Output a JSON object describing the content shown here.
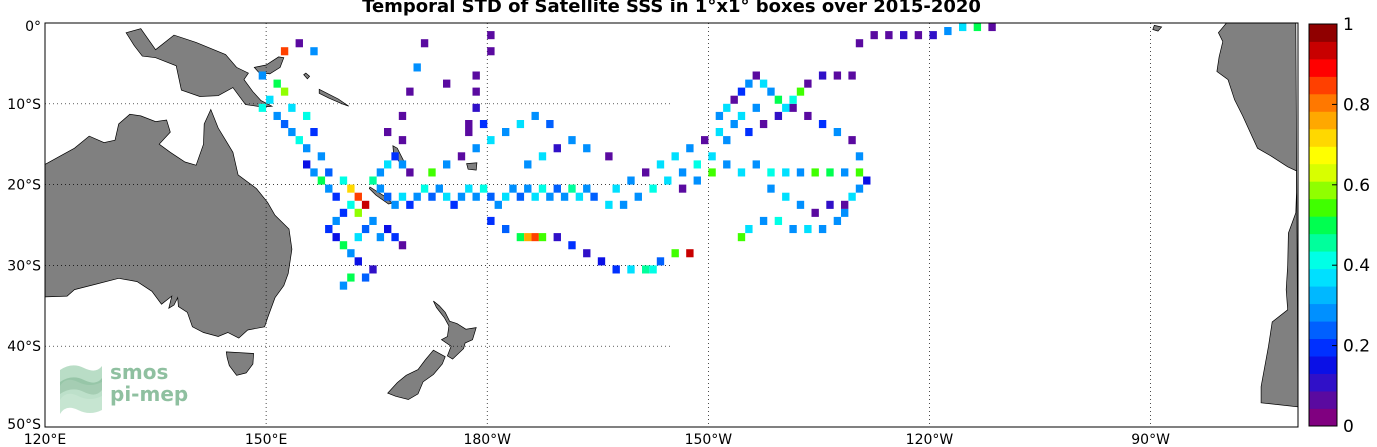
{
  "title": "Temporal STD of Satellite SSS in 1°x1° boxes over 2015-2020",
  "map": {
    "lon_range": [
      120,
      290
    ],
    "lat_range": [
      -50,
      0
    ],
    "x_ticks": [
      {
        "lon": 120,
        "label": "120°E"
      },
      {
        "lon": 150,
        "label": "150°E"
      },
      {
        "lon": 180,
        "label": "180°W"
      },
      {
        "lon": 210,
        "label": "150°W"
      },
      {
        "lon": 240,
        "label": "120°W"
      },
      {
        "lon": 270,
        "label": "90°W"
      }
    ],
    "y_ticks": [
      {
        "lat": 0,
        "label": "0°"
      },
      {
        "lat": -10,
        "label": "10°S"
      },
      {
        "lat": -20,
        "label": "20°S"
      },
      {
        "lat": -30,
        "label": "30°S"
      },
      {
        "lat": -40,
        "label": "40°S"
      },
      {
        "lat": -50,
        "label": "50°S"
      }
    ],
    "land_color": "#808080"
  },
  "colorbar": {
    "min": 0,
    "max": 1,
    "levels": 22,
    "labels": [
      "0",
      "0.2",
      "0.4",
      "0.6",
      "0.8",
      "1"
    ],
    "colors": [
      "#800080",
      "#5a0aa0",
      "#3010c8",
      "#0a10e6",
      "#0030ff",
      "#0060ff",
      "#0090ff",
      "#00b8ff",
      "#00e0ff",
      "#00ffe6",
      "#00ff9c",
      "#00ff50",
      "#40ff00",
      "#90ff00",
      "#d8ff00",
      "#ffff00",
      "#ffd800",
      "#ffa800",
      "#ff7800",
      "#ff4000",
      "#ff0000",
      "#c80000",
      "#900000"
    ]
  },
  "logo": {
    "line1": "smos",
    "line2": "pi-mep"
  },
  "chart_data": {
    "type": "heatmap",
    "title": "Temporal STD of Satellite SSS in 1°x1° boxes over 2015-2020",
    "value_range": [
      0,
      1
    ],
    "note_cells": "Each cell is [lon_deg_east, lat_deg, std_value]",
    "cells": [
      [
        152,
        -3,
        0.85
      ],
      [
        154,
        -2,
        0.05
      ],
      [
        156,
        -3,
        0.3
      ],
      [
        149,
        -6,
        0.3
      ],
      [
        151,
        -7,
        0.5
      ],
      [
        152,
        -8,
        0.6
      ],
      [
        150,
        -9,
        0.35
      ],
      [
        149,
        -10,
        0.4
      ],
      [
        151,
        -11,
        0.3
      ],
      [
        152,
        -12,
        0.25
      ],
      [
        153,
        -13,
        0.3
      ],
      [
        154,
        -14,
        0.4
      ],
      [
        155,
        -15,
        0.3
      ],
      [
        153,
        -10,
        0.35
      ],
      [
        155,
        -11,
        0.4
      ],
      [
        156,
        -13,
        0.2
      ],
      [
        157,
        -16,
        0.3
      ],
      [
        158,
        -18,
        0.25
      ],
      [
        155,
        -17,
        0.15
      ],
      [
        156,
        -18,
        0.3
      ],
      [
        157,
        -19,
        0.5
      ],
      [
        158,
        -20,
        0.3
      ],
      [
        159,
        -21,
        0.2
      ],
      [
        160,
        -19,
        0.4
      ],
      [
        161,
        -20,
        0.7
      ],
      [
        162,
        -21,
        0.85
      ],
      [
        163,
        -22,
        0.95
      ],
      [
        162,
        -23,
        0.6
      ],
      [
        161,
        -22,
        0.4
      ],
      [
        160,
        -23,
        0.2
      ],
      [
        159,
        -24,
        0.3
      ],
      [
        158,
        -25,
        0.2
      ],
      [
        159,
        -26,
        0.15
      ],
      [
        160,
        -27,
        0.5
      ],
      [
        161,
        -28,
        0.3
      ],
      [
        162,
        -29,
        0.15
      ],
      [
        161,
        -31,
        0.5
      ],
      [
        160,
        -32,
        0.3
      ],
      [
        163,
        -31,
        0.25
      ],
      [
        164,
        -30,
        0.1
      ],
      [
        162,
        -26,
        0.35
      ],
      [
        163,
        -25,
        0.25
      ],
      [
        164,
        -24,
        0.3
      ],
      [
        165,
        -26,
        0.3
      ],
      [
        166,
        -25,
        0.15
      ],
      [
        167,
        -26,
        0.2
      ],
      [
        168,
        -27,
        0.05
      ],
      [
        164,
        -19,
        0.45
      ],
      [
        165,
        -18,
        0.3
      ],
      [
        166,
        -17,
        0.35
      ],
      [
        167,
        -16,
        0.2
      ],
      [
        168,
        -17,
        0.3
      ],
      [
        169,
        -18,
        0.05
      ],
      [
        165,
        -20,
        0.3
      ],
      [
        166,
        -21,
        0.25
      ],
      [
        167,
        -22,
        0.3
      ],
      [
        168,
        -21,
        0.35
      ],
      [
        169,
        -22,
        0.2
      ],
      [
        170,
        -21,
        0.3
      ],
      [
        171,
        -20,
        0.4
      ],
      [
        172,
        -21,
        0.25
      ],
      [
        173,
        -20,
        0.3
      ],
      [
        174,
        -21,
        0.35
      ],
      [
        175,
        -22,
        0.2
      ],
      [
        176,
        -21,
        0.3
      ],
      [
        177,
        -20,
        0.35
      ],
      [
        178,
        -21,
        0.3
      ],
      [
        179,
        -20,
        0.4
      ],
      [
        180,
        -21,
        0.25
      ],
      [
        181,
        -22,
        0.3
      ],
      [
        182,
        -21,
        0.35
      ],
      [
        183,
        -20,
        0.3
      ],
      [
        184,
        -21,
        0.25
      ],
      [
        185,
        -20,
        0.3
      ],
      [
        186,
        -21,
        0.35
      ],
      [
        187,
        -20,
        0.4
      ],
      [
        188,
        -21,
        0.3
      ],
      [
        189,
        -20,
        0.25
      ],
      [
        190,
        -21,
        0.3
      ],
      [
        191,
        -20,
        0.45
      ],
      [
        192,
        -21,
        0.35
      ],
      [
        193,
        -20,
        0.3
      ],
      [
        194,
        -21,
        0.25
      ],
      [
        172,
        -18,
        0.55
      ],
      [
        174,
        -17,
        0.3
      ],
      [
        176,
        -16,
        0.05
      ],
      [
        178,
        -15,
        0.3
      ],
      [
        180,
        -14,
        0.35
      ],
      [
        182,
        -13,
        0.3
      ],
      [
        184,
        -12,
        0.35
      ],
      [
        186,
        -11,
        0.3
      ],
      [
        188,
        -12,
        0.25
      ],
      [
        177,
        -13,
        0.05
      ],
      [
        179,
        -12,
        0.2
      ],
      [
        168,
        -14,
        0.05
      ],
      [
        166,
        -13,
        0.05
      ],
      [
        180,
        -24,
        0.2
      ],
      [
        182,
        -25,
        0.25
      ],
      [
        184,
        -26,
        0.5
      ],
      [
        185,
        -26,
        0.75
      ],
      [
        186,
        -26,
        0.85
      ],
      [
        187,
        -26,
        0.55
      ],
      [
        189,
        -26,
        0.1
      ],
      [
        191,
        -27,
        0.2
      ],
      [
        193,
        -28,
        0.1
      ],
      [
        195,
        -29,
        0.15
      ],
      [
        197,
        -30,
        0.2
      ],
      [
        199,
        -30,
        0.35
      ],
      [
        201,
        -30,
        0.45
      ],
      [
        202,
        -30,
        0.4
      ],
      [
        203,
        -29,
        0.25
      ],
      [
        205,
        -28,
        0.55
      ],
      [
        207,
        -28,
        0.95
      ],
      [
        196,
        -22,
        0.35
      ],
      [
        198,
        -22,
        0.3
      ],
      [
        200,
        -21,
        0.3
      ],
      [
        202,
        -20,
        0.4
      ],
      [
        204,
        -19,
        0.35
      ],
      [
        206,
        -18,
        0.3
      ],
      [
        208,
        -17,
        0.4
      ],
      [
        210,
        -16,
        0.35
      ],
      [
        212,
        -17,
        0.3
      ],
      [
        214,
        -18,
        0.35
      ],
      [
        216,
        -17,
        0.3
      ],
      [
        218,
        -18,
        0.4
      ],
      [
        220,
        -18,
        0.35
      ],
      [
        222,
        -18,
        0.3
      ],
      [
        224,
        -18,
        0.55
      ],
      [
        226,
        -18,
        0.5
      ],
      [
        228,
        -18,
        0.3
      ],
      [
        230,
        -18,
        0.55
      ],
      [
        231,
        -19,
        0.15
      ],
      [
        230,
        -16,
        0.3
      ],
      [
        229,
        -14,
        0.05
      ],
      [
        227,
        -13,
        0.3
      ],
      [
        225,
        -12,
        0.2
      ],
      [
        223,
        -11,
        0.05
      ],
      [
        221,
        -10,
        0.05
      ],
      [
        219,
        -11,
        0.1
      ],
      [
        217,
        -12,
        0.05
      ],
      [
        215,
        -13,
        0.2
      ],
      [
        213,
        -12,
        0.3
      ],
      [
        211,
        -13,
        0.35
      ],
      [
        209,
        -14,
        0.05
      ],
      [
        207,
        -15,
        0.3
      ],
      [
        205,
        -16,
        0.35
      ],
      [
        203,
        -17,
        0.35
      ],
      [
        201,
        -18,
        0.05
      ],
      [
        199,
        -19,
        0.3
      ],
      [
        197,
        -20,
        0.35
      ],
      [
        211,
        -11,
        0.3
      ],
      [
        212,
        -10,
        0.35
      ],
      [
        213,
        -9,
        0.05
      ],
      [
        214,
        -8,
        0.2
      ],
      [
        215,
        -7,
        0.3
      ],
      [
        216,
        -6,
        0.05
      ],
      [
        217,
        -7,
        0.35
      ],
      [
        218,
        -8,
        0.3
      ],
      [
        219,
        -9,
        0.5
      ],
      [
        220,
        -10,
        0.35
      ],
      [
        221,
        -9,
        0.4
      ],
      [
        222,
        -8,
        0.55
      ],
      [
        223,
        -7,
        0.05
      ],
      [
        225,
        -6,
        0.1
      ],
      [
        227,
        -6,
        0.05
      ],
      [
        229,
        -6,
        0.05
      ],
      [
        218,
        -20,
        0.3
      ],
      [
        220,
        -21,
        0.35
      ],
      [
        222,
        -22,
        0.3
      ],
      [
        224,
        -23,
        0.05
      ],
      [
        226,
        -22,
        0.1
      ],
      [
        228,
        -23,
        0.3
      ],
      [
        217,
        -24,
        0.3
      ],
      [
        215,
        -25,
        0.35
      ],
      [
        214,
        -26,
        0.55
      ],
      [
        219,
        -24,
        0.4
      ],
      [
        221,
        -25,
        0.3
      ],
      [
        223,
        -25,
        0.35
      ],
      [
        225,
        -25,
        0.3
      ],
      [
        230,
        -20,
        0.3
      ],
      [
        229,
        -21,
        0.35
      ],
      [
        228,
        -22,
        0.05
      ],
      [
        227,
        -24,
        0.3
      ],
      [
        185,
        -17,
        0.3
      ],
      [
        187,
        -16,
        0.35
      ],
      [
        189,
        -15,
        0.1
      ],
      [
        191,
        -14,
        0.3
      ],
      [
        193,
        -15,
        0.3
      ],
      [
        196,
        -16,
        0.05
      ],
      [
        178,
        -6,
        0.05
      ],
      [
        178,
        -8,
        0.05
      ],
      [
        178,
        -10,
        0.1
      ],
      [
        177,
        -12,
        0.05
      ],
      [
        171,
        -2,
        0.05
      ],
      [
        170,
        -5,
        0.3
      ],
      [
        169,
        -8,
        0.05
      ],
      [
        168,
        -11,
        0.05
      ],
      [
        174,
        -7,
        0.05
      ],
      [
        180,
        -3,
        0.05
      ],
      [
        180,
        -1,
        0.05
      ],
      [
        230,
        -2,
        0.05
      ],
      [
        232,
        -1,
        0.05
      ],
      [
        234,
        -1,
        0.05
      ],
      [
        236,
        -1,
        0.1
      ],
      [
        238,
        -1,
        0.05
      ],
      [
        240,
        -1,
        0.1
      ],
      [
        242,
        -0.5,
        0.3
      ],
      [
        244,
        0,
        0.35
      ],
      [
        246,
        0,
        0.5
      ],
      [
        248,
        0,
        0.05
      ],
      [
        216,
        -10,
        0.3
      ],
      [
        214,
        -11,
        0.35
      ],
      [
        212,
        -14,
        0.3
      ],
      [
        210,
        -18,
        0.55
      ],
      [
        208,
        -19,
        0.3
      ],
      [
        206,
        -20,
        0.05
      ]
    ]
  }
}
